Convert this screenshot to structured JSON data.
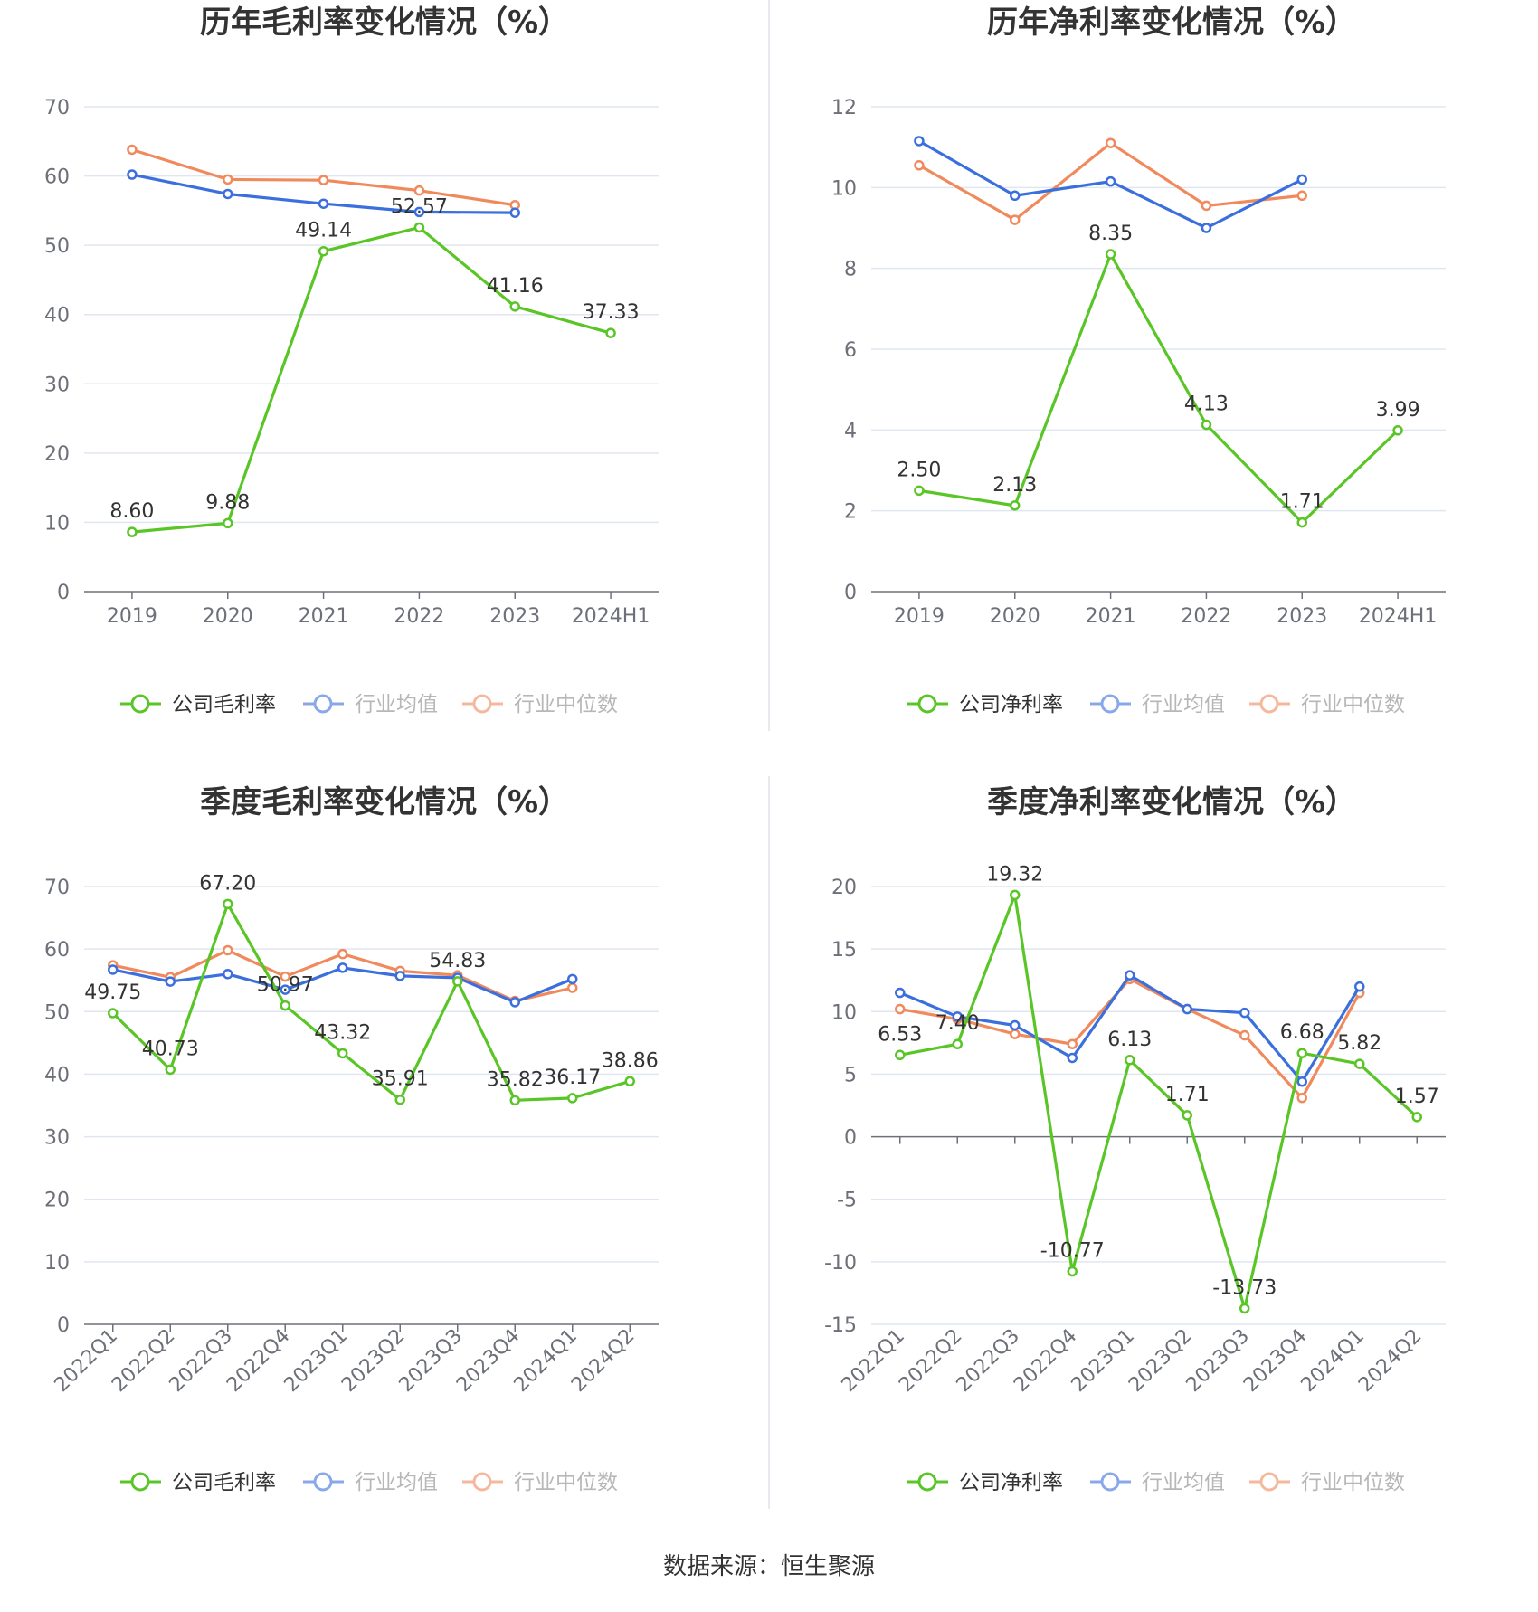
{
  "source": "数据来源：恒生聚源",
  "colors": {
    "company": "#5ac527",
    "avg": "#3b6fdd",
    "median": "#f08a5d"
  },
  "chart_data": [
    {
      "type": "line",
      "title": "历年毛利率变化情况（%）",
      "categories": [
        "2019",
        "2020",
        "2021",
        "2022",
        "2023",
        "2024H1"
      ],
      "yticks": [
        "0",
        "10",
        "20",
        "30",
        "40",
        "50",
        "60",
        "70"
      ],
      "ylim": [
        0,
        70
      ],
      "series": [
        {
          "name": "公司毛利率",
          "values": [
            8.6,
            9.88,
            49.14,
            52.57,
            41.16,
            37.33
          ],
          "labels": [
            "8.60",
            "9.88",
            "49.14",
            "52.57",
            "41.16",
            "37.33"
          ]
        },
        {
          "name": "行业均值",
          "values": [
            60.2,
            57.4,
            56.0,
            54.8,
            54.7,
            null
          ]
        },
        {
          "name": "行业中位数",
          "values": [
            63.8,
            59.5,
            59.4,
            57.9,
            55.8,
            null
          ]
        }
      ]
    },
    {
      "type": "line",
      "title": "历年净利率变化情况（%）",
      "categories": [
        "2019",
        "2020",
        "2021",
        "2022",
        "2023",
        "2024H1"
      ],
      "yticks": [
        "0",
        "2",
        "4",
        "6",
        "8",
        "10",
        "12"
      ],
      "ylim": [
        0,
        12
      ],
      "series": [
        {
          "name": "公司净利率",
          "values": [
            2.5,
            2.13,
            8.35,
            4.13,
            1.71,
            3.99
          ],
          "labels": [
            "2.50",
            "2.13",
            "8.35",
            "4.13",
            "1.71",
            "3.99"
          ]
        },
        {
          "name": "行业均值",
          "values": [
            11.15,
            9.8,
            10.15,
            9.0,
            10.2,
            null
          ]
        },
        {
          "name": "行业中位数",
          "values": [
            10.55,
            9.2,
            11.1,
            9.55,
            9.8,
            null
          ]
        }
      ]
    },
    {
      "type": "line",
      "title": "季度毛利率变化情况（%）",
      "categories": [
        "2022Q1",
        "2022Q2",
        "2022Q3",
        "2022Q4",
        "2023Q1",
        "2023Q2",
        "2023Q3",
        "2023Q4",
        "2024Q1",
        "2024Q2"
      ],
      "yticks": [
        "0",
        "10",
        "20",
        "30",
        "40",
        "50",
        "60",
        "70"
      ],
      "ylim": [
        0,
        70
      ],
      "series": [
        {
          "name": "公司毛利率",
          "values": [
            49.75,
            40.73,
            67.2,
            50.97,
            43.32,
            35.91,
            54.83,
            35.82,
            36.17,
            38.86
          ],
          "labels": [
            "49.75",
            "40.73",
            "67.20",
            "50.97",
            "43.32",
            "35.91",
            "54.83",
            "35.82",
            "36.17",
            "38.86"
          ]
        },
        {
          "name": "行业均值",
          "values": [
            56.7,
            54.8,
            56.0,
            53.5,
            57.0,
            55.7,
            55.4,
            51.5,
            55.2,
            null
          ]
        },
        {
          "name": "行业中位数",
          "values": [
            57.4,
            55.5,
            59.8,
            55.6,
            59.2,
            56.5,
            55.8,
            51.7,
            53.8,
            null
          ]
        }
      ]
    },
    {
      "type": "line",
      "title": "季度净利率变化情况（%）",
      "categories": [
        "2022Q1",
        "2022Q2",
        "2022Q3",
        "2022Q4",
        "2023Q1",
        "2023Q2",
        "2023Q3",
        "2023Q4",
        "2024Q1",
        "2024Q2"
      ],
      "yticks": [
        "-15",
        "-10",
        "-5",
        "0",
        "5",
        "10",
        "15",
        "20"
      ],
      "ylim": [
        -15,
        20
      ],
      "series": [
        {
          "name": "公司净利率",
          "values": [
            6.53,
            7.4,
            19.32,
            -10.77,
            6.13,
            1.71,
            -13.73,
            6.68,
            5.82,
            1.57
          ],
          "labels": [
            "6.53",
            "7.40",
            "19.32",
            "-10.77",
            "6.13",
            "1.71",
            "-13.73",
            "6.68",
            "5.82",
            "1.57"
          ]
        },
        {
          "name": "行业均值",
          "values": [
            11.5,
            9.6,
            8.9,
            6.3,
            12.9,
            10.2,
            9.9,
            4.4,
            12.0,
            null
          ]
        },
        {
          "name": "行业中位数",
          "values": [
            10.2,
            9.4,
            8.2,
            7.4,
            12.6,
            10.2,
            8.1,
            3.1,
            11.5,
            null
          ]
        }
      ]
    }
  ]
}
